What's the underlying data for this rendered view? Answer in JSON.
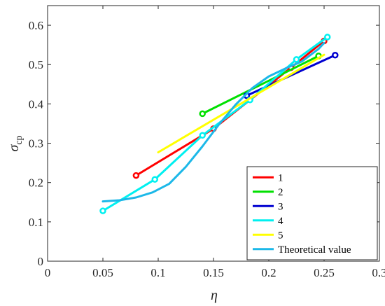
{
  "chart_data": {
    "type": "line",
    "xlabel": "η",
    "ylabel": "σ",
    "ylabel_sub": "cp",
    "xlim": [
      0,
      0.3
    ],
    "ylim": [
      0,
      0.65
    ],
    "xticks": [
      0,
      0.05,
      0.1,
      0.15,
      0.2,
      0.25,
      0.3
    ],
    "xtick_labels": [
      "0",
      "0.05",
      "0.1",
      "0.15",
      "0.2",
      "0.25",
      "0.3"
    ],
    "yticks": [
      0,
      0.1,
      0.2,
      0.3,
      0.4,
      0.5,
      0.6
    ],
    "ytick_labels": [
      "0",
      "0.1",
      "0.2",
      "0.3",
      "0.4",
      "0.5",
      "0.6"
    ],
    "grid": false,
    "legend_position": "bottom-right",
    "series": [
      {
        "name": "1",
        "color": "#ff0000",
        "marker": true,
        "x": [
          0.08,
          0.15,
          0.22,
          0.25
        ],
        "y": [
          0.218,
          0.337,
          0.492,
          0.56
        ]
      },
      {
        "name": "2",
        "color": "#00e000",
        "marker": true,
        "x": [
          0.14,
          0.245
        ],
        "y": [
          0.375,
          0.522
        ]
      },
      {
        "name": "3",
        "color": "#0000d0",
        "marker": true,
        "x": [
          0.18,
          0.26
        ],
        "y": [
          0.421,
          0.524
        ]
      },
      {
        "name": "4",
        "color": "#00f0f0",
        "marker": true,
        "x": [
          0.05,
          0.097,
          0.14,
          0.183,
          0.225,
          0.253
        ],
        "y": [
          0.128,
          0.208,
          0.32,
          0.41,
          0.513,
          0.57
        ]
      },
      {
        "name": "5",
        "color": "#ffff00",
        "marker": false,
        "x": [
          0.1,
          0.25
        ],
        "y": [
          0.277,
          0.525
        ]
      },
      {
        "name": "Theoretical value",
        "color": "#1cb8e8",
        "marker": false,
        "x": [
          0.05,
          0.065,
          0.08,
          0.095,
          0.11,
          0.125,
          0.14,
          0.155,
          0.17,
          0.185,
          0.2,
          0.215,
          0.23,
          0.245,
          0.25
        ],
        "y": [
          0.152,
          0.155,
          0.162,
          0.175,
          0.197,
          0.24,
          0.292,
          0.348,
          0.398,
          0.44,
          0.47,
          0.49,
          0.508,
          0.54,
          0.555
        ]
      }
    ]
  }
}
